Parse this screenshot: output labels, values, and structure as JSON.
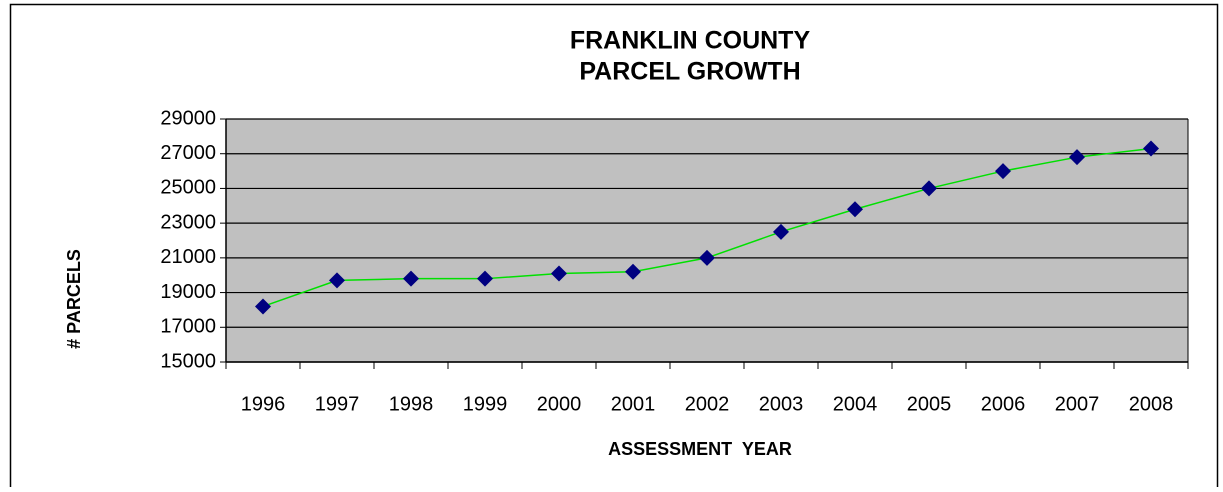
{
  "chart_data": {
    "type": "line",
    "title": [
      "FRANKLIN COUNTY",
      "PARCEL GROWTH"
    ],
    "x_label": "ASSESSMENT  YEAR",
    "y_label": "# PARCELS",
    "categories": [
      "1996",
      "1997",
      "1998",
      "1999",
      "2000",
      "2001",
      "2002",
      "2003",
      "2004",
      "2005",
      "2006",
      "2007",
      "2008"
    ],
    "series": [
      {
        "name": "Parcels",
        "color": "#00e000",
        "marker_color": "#000080",
        "values": [
          18200,
          19700,
          19800,
          19800,
          20100,
          20200,
          21000,
          22500,
          23800,
          25000,
          26000,
          26800,
          27300
        ]
      }
    ],
    "ylim": [
      15000,
      29000
    ],
    "yticks": [
      15000,
      17000,
      19000,
      21000,
      23000,
      25000,
      27000,
      29000
    ],
    "grid": true,
    "plot_background": "#c0c0c0"
  }
}
